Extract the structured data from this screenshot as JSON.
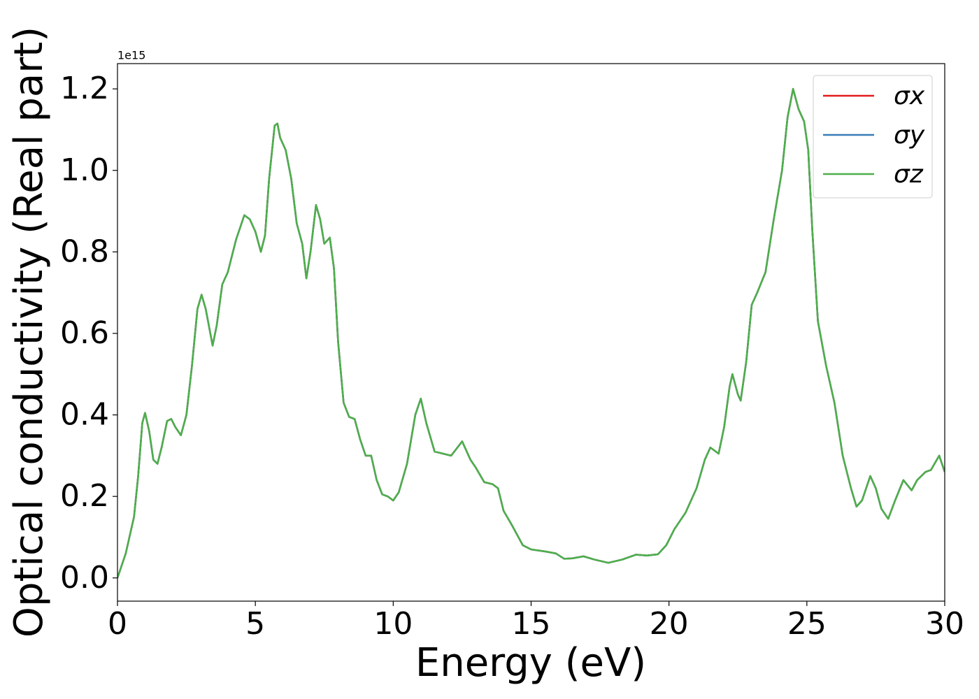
{
  "chart_data": {
    "type": "line",
    "xlabel": "Energy (eV)",
    "ylabel": "Optical conductivity (Real part)",
    "y_offset_label": "1e15",
    "x": [
      0,
      0.3,
      0.6,
      0.75,
      0.9,
      1.0,
      1.15,
      1.3,
      1.45,
      1.6,
      1.8,
      1.95,
      2.1,
      2.3,
      2.5,
      2.7,
      2.9,
      3.05,
      3.2,
      3.45,
      3.6,
      3.8,
      4.0,
      4.3,
      4.6,
      4.8,
      5.0,
      5.2,
      5.35,
      5.5,
      5.7,
      5.8,
      5.9,
      6.1,
      6.3,
      6.5,
      6.7,
      6.85,
      7.0,
      7.2,
      7.35,
      7.5,
      7.7,
      7.85,
      8.0,
      8.2,
      8.4,
      8.6,
      8.8,
      9.0,
      9.2,
      9.4,
      9.6,
      9.8,
      10.0,
      10.2,
      10.5,
      10.8,
      11.0,
      11.2,
      11.5,
      11.8,
      12.1,
      12.5,
      12.8,
      13.0,
      13.3,
      13.6,
      13.8,
      14.0,
      14.3,
      14.7,
      15.0,
      15.5,
      15.9,
      16.2,
      16.5,
      16.9,
      17.3,
      17.8,
      18.3,
      18.8,
      19.2,
      19.6,
      19.9,
      20.2,
      20.6,
      21.0,
      21.3,
      21.5,
      21.8,
      22.0,
      22.2,
      22.3,
      22.5,
      22.6,
      22.8,
      23.0,
      23.2,
      23.5,
      23.8,
      24.1,
      24.3,
      24.5,
      24.7,
      24.9,
      25.05,
      25.2,
      25.4,
      25.7,
      26.0,
      26.3,
      26.6,
      26.8,
      27.0,
      27.3,
      27.5,
      27.7,
      27.95,
      28.2,
      28.5,
      28.8,
      29.0,
      29.3,
      29.5,
      29.8,
      30.0
    ],
    "series": [
      {
        "name": "σx",
        "color": "#e41a1c",
        "values": [
          0.0,
          0.06,
          0.15,
          0.25,
          0.38,
          0.405,
          0.36,
          0.29,
          0.28,
          0.32,
          0.385,
          0.39,
          0.37,
          0.35,
          0.4,
          0.52,
          0.66,
          0.695,
          0.66,
          0.57,
          0.62,
          0.72,
          0.75,
          0.83,
          0.89,
          0.88,
          0.85,
          0.8,
          0.84,
          0.98,
          1.11,
          1.115,
          1.08,
          1.05,
          0.98,
          0.87,
          0.82,
          0.735,
          0.8,
          0.915,
          0.88,
          0.82,
          0.835,
          0.76,
          0.58,
          0.43,
          0.395,
          0.39,
          0.34,
          0.3,
          0.3,
          0.24,
          0.205,
          0.2,
          0.19,
          0.21,
          0.28,
          0.4,
          0.44,
          0.38,
          0.31,
          0.305,
          0.3,
          0.335,
          0.29,
          0.27,
          0.235,
          0.23,
          0.22,
          0.165,
          0.13,
          0.08,
          0.07,
          0.065,
          0.06,
          0.047,
          0.048,
          0.053,
          0.045,
          0.037,
          0.045,
          0.057,
          0.055,
          0.058,
          0.08,
          0.12,
          0.16,
          0.22,
          0.29,
          0.32,
          0.305,
          0.37,
          0.47,
          0.5,
          0.45,
          0.435,
          0.53,
          0.67,
          0.7,
          0.75,
          0.88,
          1.0,
          1.13,
          1.2,
          1.15,
          1.12,
          1.05,
          0.85,
          0.63,
          0.52,
          0.43,
          0.3,
          0.22,
          0.175,
          0.19,
          0.25,
          0.22,
          0.17,
          0.145,
          0.19,
          0.24,
          0.215,
          0.24,
          0.26,
          0.265,
          0.3,
          0.26
        ]
      },
      {
        "name": "σy",
        "color": "#377eb8",
        "values": [
          0.0,
          0.06,
          0.15,
          0.25,
          0.38,
          0.405,
          0.36,
          0.29,
          0.28,
          0.32,
          0.385,
          0.39,
          0.37,
          0.35,
          0.4,
          0.52,
          0.66,
          0.695,
          0.66,
          0.57,
          0.62,
          0.72,
          0.75,
          0.83,
          0.89,
          0.88,
          0.85,
          0.8,
          0.84,
          0.98,
          1.11,
          1.115,
          1.08,
          1.05,
          0.98,
          0.87,
          0.82,
          0.735,
          0.8,
          0.915,
          0.88,
          0.82,
          0.835,
          0.76,
          0.58,
          0.43,
          0.395,
          0.39,
          0.34,
          0.3,
          0.3,
          0.24,
          0.205,
          0.2,
          0.19,
          0.21,
          0.28,
          0.4,
          0.44,
          0.38,
          0.31,
          0.305,
          0.3,
          0.335,
          0.29,
          0.27,
          0.235,
          0.23,
          0.22,
          0.165,
          0.13,
          0.08,
          0.07,
          0.065,
          0.06,
          0.047,
          0.048,
          0.053,
          0.045,
          0.037,
          0.045,
          0.057,
          0.055,
          0.058,
          0.08,
          0.12,
          0.16,
          0.22,
          0.29,
          0.32,
          0.305,
          0.37,
          0.47,
          0.5,
          0.45,
          0.435,
          0.53,
          0.67,
          0.7,
          0.75,
          0.88,
          1.0,
          1.13,
          1.2,
          1.15,
          1.12,
          1.05,
          0.85,
          0.63,
          0.52,
          0.43,
          0.3,
          0.22,
          0.175,
          0.19,
          0.25,
          0.22,
          0.17,
          0.145,
          0.19,
          0.24,
          0.215,
          0.24,
          0.26,
          0.265,
          0.3,
          0.26
        ]
      },
      {
        "name": "σz",
        "color": "#4daf4a",
        "values": [
          0.0,
          0.06,
          0.15,
          0.25,
          0.38,
          0.405,
          0.36,
          0.29,
          0.28,
          0.32,
          0.385,
          0.39,
          0.37,
          0.35,
          0.4,
          0.52,
          0.66,
          0.695,
          0.66,
          0.57,
          0.62,
          0.72,
          0.75,
          0.83,
          0.89,
          0.88,
          0.85,
          0.8,
          0.84,
          0.98,
          1.11,
          1.115,
          1.08,
          1.05,
          0.98,
          0.87,
          0.82,
          0.735,
          0.8,
          0.915,
          0.88,
          0.82,
          0.835,
          0.76,
          0.58,
          0.43,
          0.395,
          0.39,
          0.34,
          0.3,
          0.3,
          0.24,
          0.205,
          0.2,
          0.19,
          0.21,
          0.28,
          0.4,
          0.44,
          0.38,
          0.31,
          0.305,
          0.3,
          0.335,
          0.29,
          0.27,
          0.235,
          0.23,
          0.22,
          0.165,
          0.13,
          0.08,
          0.07,
          0.065,
          0.06,
          0.047,
          0.048,
          0.053,
          0.045,
          0.037,
          0.045,
          0.057,
          0.055,
          0.058,
          0.08,
          0.12,
          0.16,
          0.22,
          0.29,
          0.32,
          0.305,
          0.37,
          0.47,
          0.5,
          0.45,
          0.435,
          0.53,
          0.67,
          0.7,
          0.75,
          0.88,
          1.0,
          1.13,
          1.2,
          1.15,
          1.12,
          1.05,
          0.85,
          0.63,
          0.52,
          0.43,
          0.3,
          0.22,
          0.175,
          0.19,
          0.25,
          0.22,
          0.17,
          0.145,
          0.19,
          0.24,
          0.215,
          0.24,
          0.26,
          0.265,
          0.3,
          0.26
        ]
      }
    ],
    "xlim": [
      0,
      30
    ],
    "xticks": [
      0,
      5,
      10,
      15,
      20,
      25,
      30
    ],
    "ylim": [
      -0.057,
      1.262
    ],
    "yticks": [
      {
        "value": 0,
        "label": "0.0"
      },
      0.2,
      0.4,
      0.6,
      0.8,
      {
        "value": 1,
        "label": "1.0"
      },
      1.2
    ],
    "grid": false,
    "legend": "upper right"
  }
}
